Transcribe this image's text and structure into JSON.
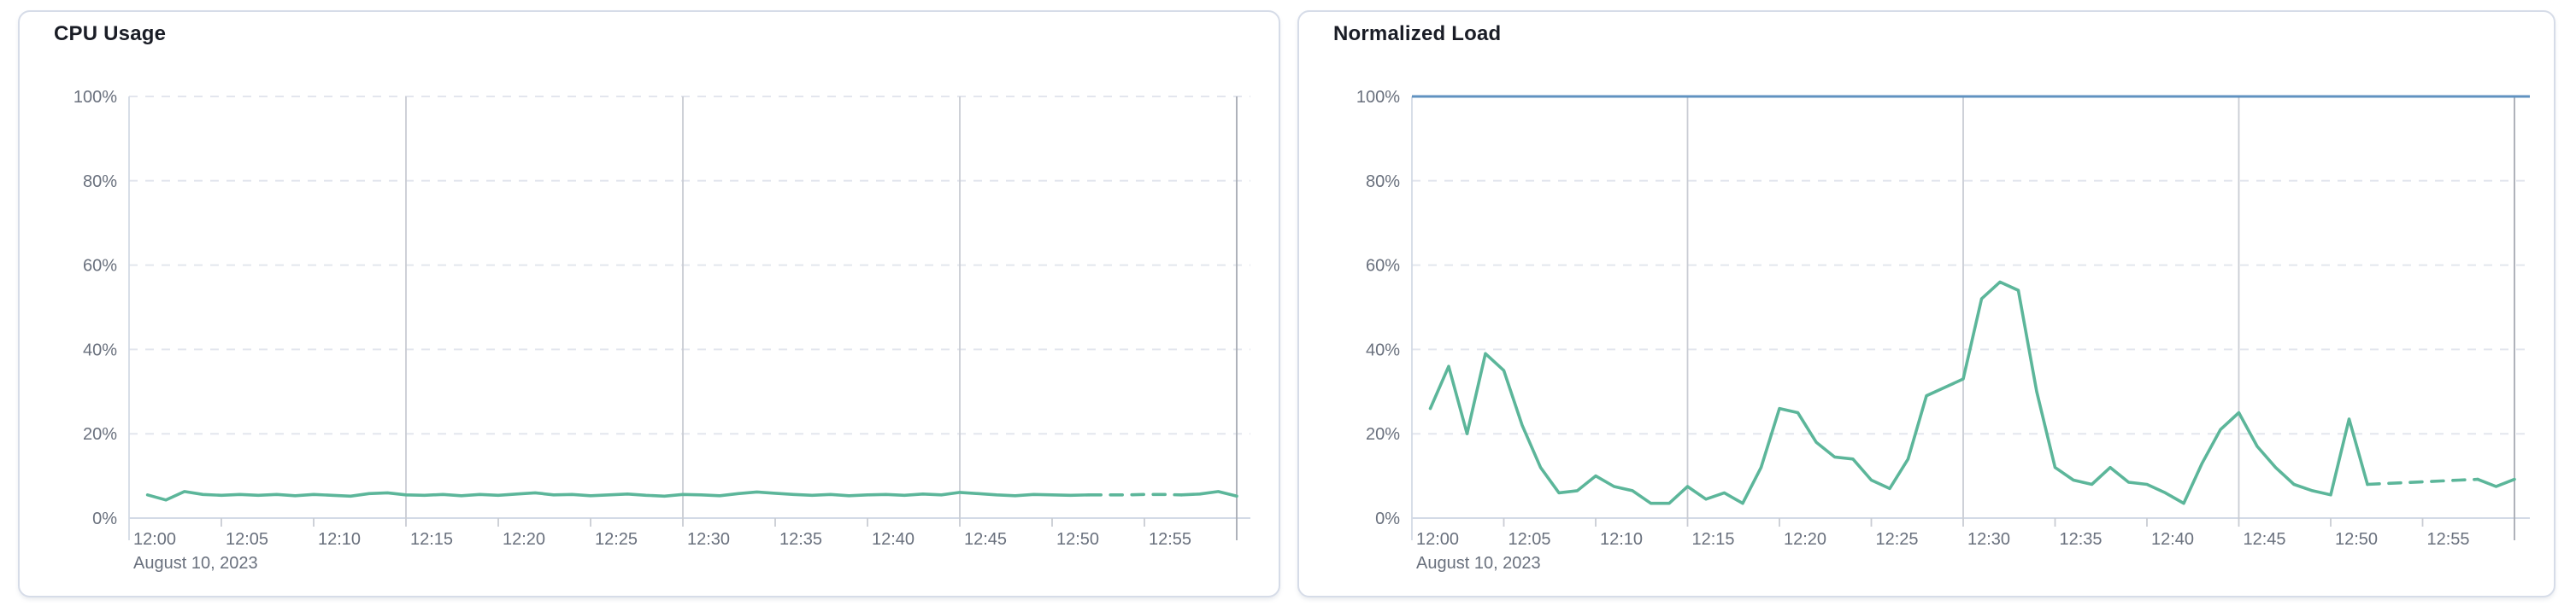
{
  "page": {
    "background_color": "#ffffff",
    "card_border_color": "#d6dce8",
    "card_background": "#ffffff"
  },
  "colors": {
    "series_green": "#5cb69a",
    "threshold_blue": "#6092c0",
    "grid_dashed": "#e3e6ee",
    "grid_vertical": "#c9ccd3",
    "domain_edge_line": "#d3dae6",
    "domain_end_line": "#a6aab2",
    "axis_line": "#d3dae6",
    "tick_text": "#69707d",
    "title_text": "#1a1d26"
  },
  "chart_data": [
    {
      "type": "line",
      "title": "CPU Usage",
      "x_context_label": "August 10, 2023",
      "x_tick_labels": [
        "12:00",
        "12:05",
        "12:10",
        "12:15",
        "12:20",
        "12:25",
        "12:30",
        "12:35",
        "12:40",
        "12:45",
        "12:50",
        "12:55"
      ],
      "x_tick_interval_minutes": 5,
      "x_domain_minutes": [
        0,
        60
      ],
      "y_tick_labels": [
        "0%",
        "20%",
        "40%",
        "60%",
        "80%",
        "100%"
      ],
      "ylim": [
        0,
        100
      ],
      "grid": "dashed-horizontal, solid-vertical-every-15min",
      "legend": "none",
      "threshold": null,
      "series_name": "cpu-usage",
      "start_minute": 1,
      "values": [
        5.5,
        4.3,
        6.3,
        5.6,
        5.4,
        5.6,
        5.4,
        5.6,
        5.3,
        5.6,
        5.4,
        5.2,
        5.8,
        6.0,
        5.5,
        5.4,
        5.6,
        5.3,
        5.6,
        5.4,
        5.7,
        6.0,
        5.5,
        5.6,
        5.3,
        5.5,
        5.7,
        5.4,
        5.2,
        5.6,
        5.5,
        5.3,
        5.8,
        6.2,
        5.9,
        5.6,
        5.4,
        5.6,
        5.3,
        5.5,
        5.6,
        5.4,
        5.7,
        5.5,
        6.1,
        5.8,
        5.5,
        5.3,
        5.6,
        5.5,
        5.4,
        5.5,
        5.5,
        5.5,
        5.6,
        5.6,
        5.5,
        5.7,
        6.3,
        5.2
      ],
      "dash_gap_start_minute": 52,
      "dash_gap_end_minute": 57
    },
    {
      "type": "line",
      "title": "Normalized Load",
      "x_context_label": "August 10, 2023",
      "x_tick_labels": [
        "12:00",
        "12:05",
        "12:10",
        "12:15",
        "12:20",
        "12:25",
        "12:30",
        "12:35",
        "12:40",
        "12:45",
        "12:50",
        "12:55"
      ],
      "x_tick_interval_minutes": 5,
      "x_domain_minutes": [
        0,
        60
      ],
      "y_tick_labels": [
        "0%",
        "20%",
        "40%",
        "60%",
        "80%",
        "100%"
      ],
      "ylim": [
        0,
        100
      ],
      "grid": "dashed-horizontal, solid-vertical-every-15min",
      "legend": "none",
      "threshold": {
        "value": 100,
        "label": "100%",
        "color": "#6092c0"
      },
      "series_name": "normalized-load",
      "start_minute": 1,
      "values": [
        26,
        36,
        20,
        39,
        35,
        22,
        12,
        6,
        6.5,
        10,
        7.5,
        6.5,
        3.5,
        3.5,
        7.5,
        4.5,
        6,
        3.5,
        12,
        26,
        25,
        18,
        14.5,
        14,
        9,
        7,
        14,
        29,
        31,
        33,
        52,
        56,
        54,
        30,
        12,
        9,
        8,
        12,
        8.5,
        8,
        6,
        3.5,
        13,
        21,
        25,
        17,
        12,
        8,
        6.5,
        5.5,
        23.5,
        8,
        8.2,
        8.4,
        8.6,
        8.8,
        9,
        9.2,
        7.5,
        9.2
      ],
      "dash_gap_start_minute": 52,
      "dash_gap_end_minute": 58
    }
  ]
}
